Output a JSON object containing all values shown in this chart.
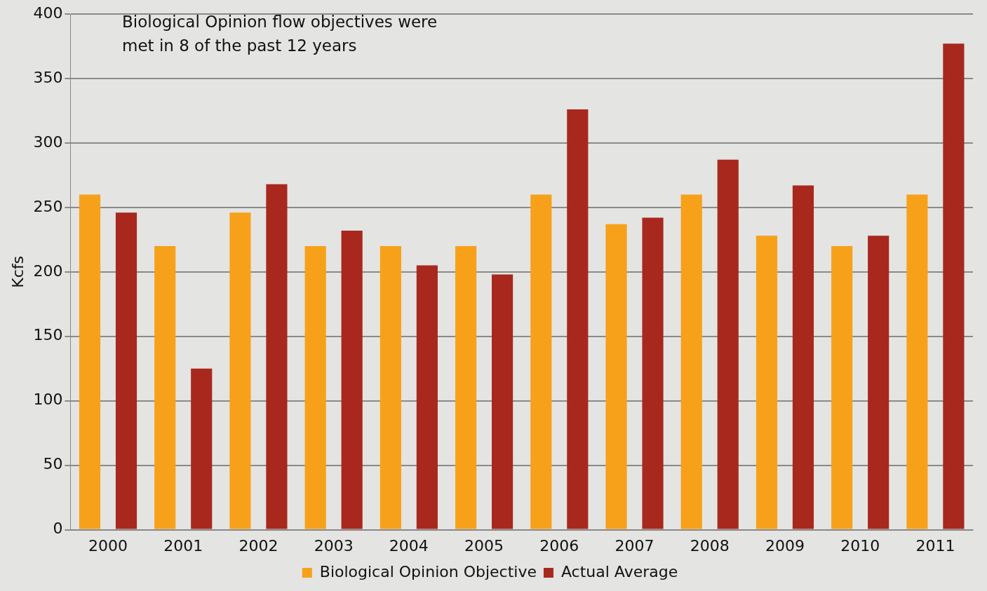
{
  "chart_data": {
    "type": "bar",
    "ylabel": "Kcfs",
    "categories": [
      "2000",
      "2001",
      "2002",
      "2003",
      "2004",
      "2005",
      "2006",
      "2007",
      "2008",
      "2009",
      "2010",
      "2011"
    ],
    "series": [
      {
        "name": "Biological Opinion Objective",
        "color": "#f7a11a",
        "values": [
          260,
          220,
          246,
          220,
          220,
          220,
          260,
          237,
          260,
          228,
          220,
          260
        ]
      },
      {
        "name": "Actual Average",
        "color": "#a8281e",
        "values": [
          246,
          125,
          268,
          232,
          205,
          198,
          326,
          242,
          287,
          267,
          228,
          377
        ]
      }
    ],
    "ylim": [
      0,
      400
    ],
    "yticks": [
      0,
      50,
      100,
      150,
      200,
      250,
      300,
      350,
      400
    ],
    "grid": "y",
    "legend": "bottom",
    "annotations": [
      "Biological Opinion flow objectives were met in 8 of the past 12 years"
    ]
  }
}
